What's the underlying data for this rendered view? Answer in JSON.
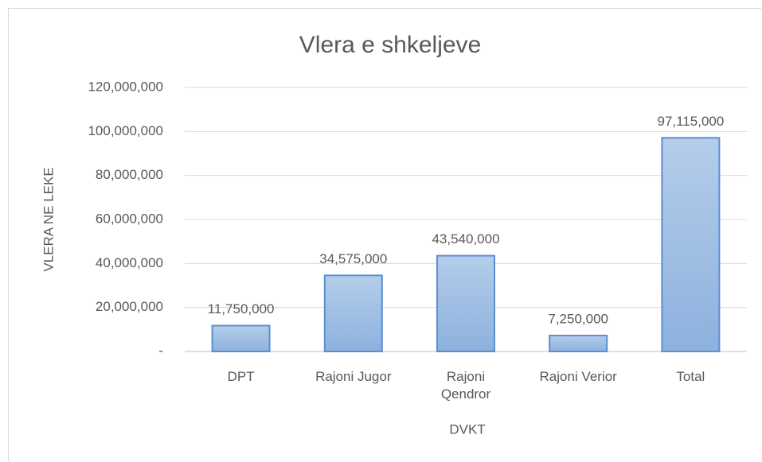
{
  "chart_data": {
    "type": "bar",
    "title": "Vlera e shkeljeve",
    "x_label": "DVKT",
    "y_label": "VLERA NE LEKE",
    "categories": [
      "DPT",
      "Rajoni Jugor",
      "Rajoni Qendror",
      "Rajoni Verior",
      "Total"
    ],
    "values": [
      11750000,
      34575000,
      43540000,
      7250000,
      97115000
    ],
    "value_labels": [
      "11,750,000",
      "34,575,000",
      "43,540,000",
      "7,250,000",
      "97,115,000"
    ],
    "color": "#9dbfe6",
    "ylim": [
      0,
      120000000
    ],
    "yticks": [
      {
        "value": 0,
        "label": "-"
      },
      {
        "value": 20000000,
        "label": "20,000,000"
      },
      {
        "value": 40000000,
        "label": "40,000,000"
      },
      {
        "value": 60000000,
        "label": "60,000,000"
      },
      {
        "value": 80000000,
        "label": "80,000,000"
      },
      {
        "value": 100000000,
        "label": "100,000,000"
      },
      {
        "value": 120000000,
        "label": "120,000,000"
      }
    ],
    "grid": true
  }
}
